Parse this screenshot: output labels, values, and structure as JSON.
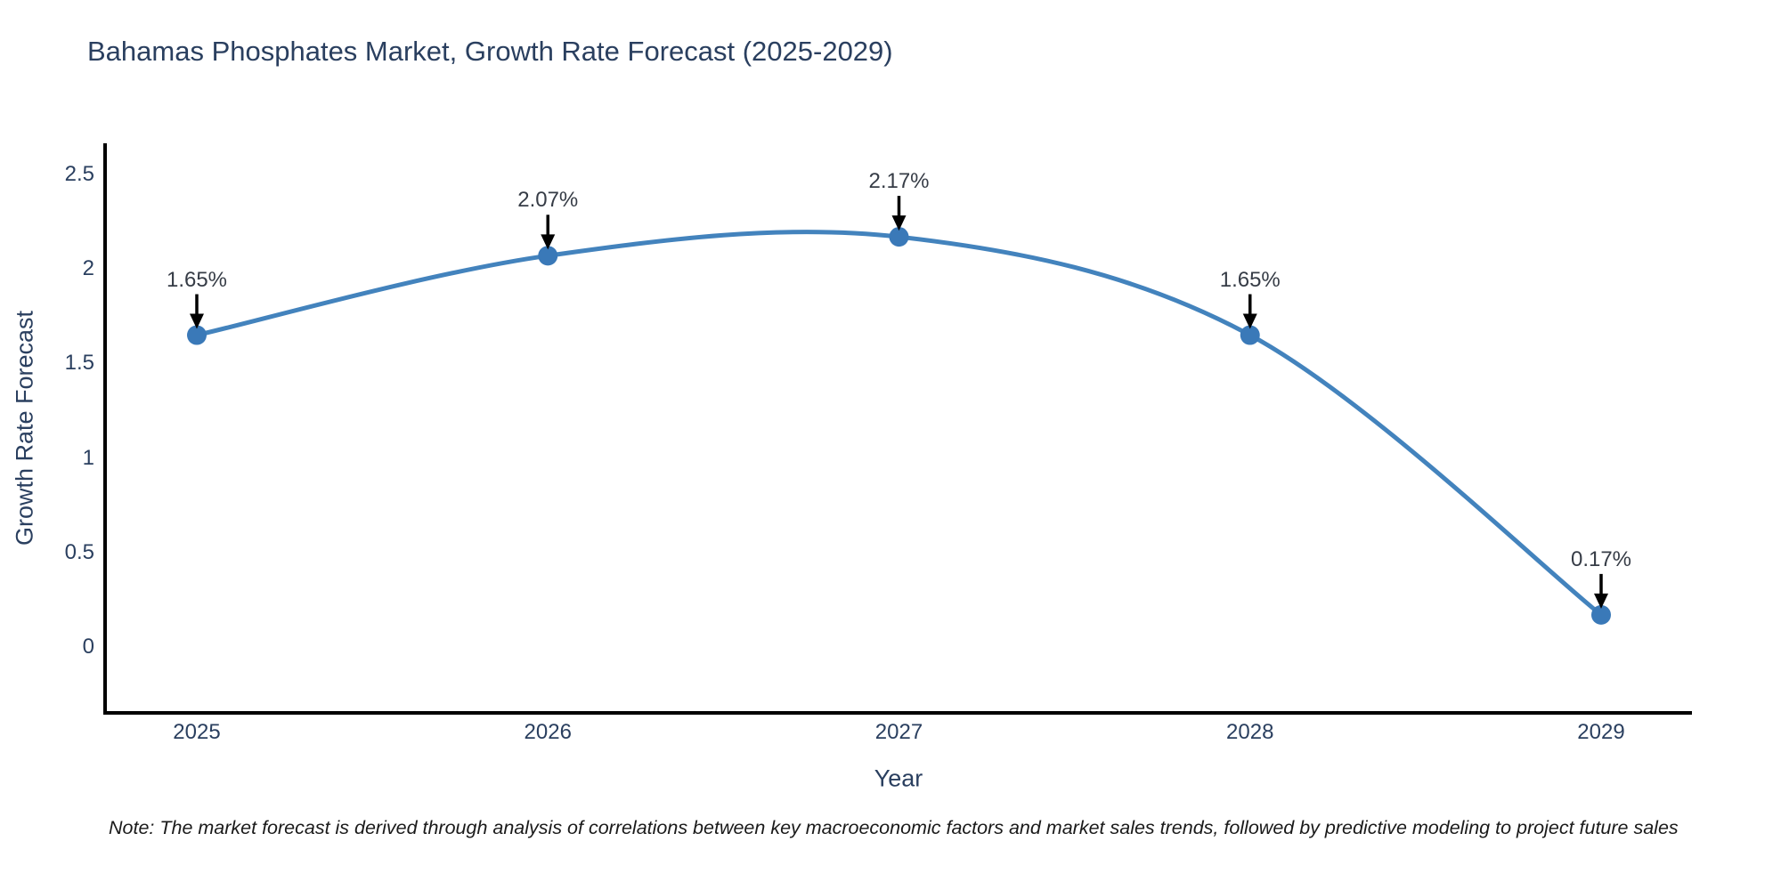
{
  "title": "Bahamas Phosphates Market, Growth Rate Forecast (2025-2029)",
  "note": "Note: The market forecast is derived through analysis of correlations between key macroeconomic factors and market sales trends, followed by predictive modeling to project future sales",
  "chart_data": {
    "type": "line",
    "title": "Bahamas Phosphates Market, Growth Rate Forecast (2025-2029)",
    "categories": [
      "2025",
      "2026",
      "2027",
      "2028",
      "2029"
    ],
    "x": [
      2025,
      2026,
      2027,
      2028,
      2029
    ],
    "values": [
      1.65,
      2.07,
      2.17,
      1.65,
      0.17
    ],
    "data_labels": [
      "1.65%",
      "2.07%",
      "2.17%",
      "1.65%",
      "0.17%"
    ],
    "xlabel": "Year",
    "ylabel": "Growth Rate Forecast",
    "yticks": [
      0,
      0.5,
      1,
      1.5,
      2,
      2.5
    ],
    "ytick_labels": [
      "0",
      "0.5",
      "1",
      "1.5",
      "2",
      "2.5"
    ],
    "ylim": [
      -0.35,
      2.67
    ],
    "grid": false,
    "line_shape": "spline",
    "legend": "none",
    "annotation_style": "value label with downward black arrow to each marker"
  },
  "colors": {
    "background": "#ffffff",
    "title_text": "#2a3f5f",
    "tick_text": "#2a3f5f",
    "axis_title_text": "#2a3f5f",
    "annotation_text": "#363c46",
    "arrow": "#000000",
    "line": "#4383bd",
    "marker": "#3a79b8",
    "axis_line": "#000000",
    "note_text": "#1a1a1a"
  }
}
